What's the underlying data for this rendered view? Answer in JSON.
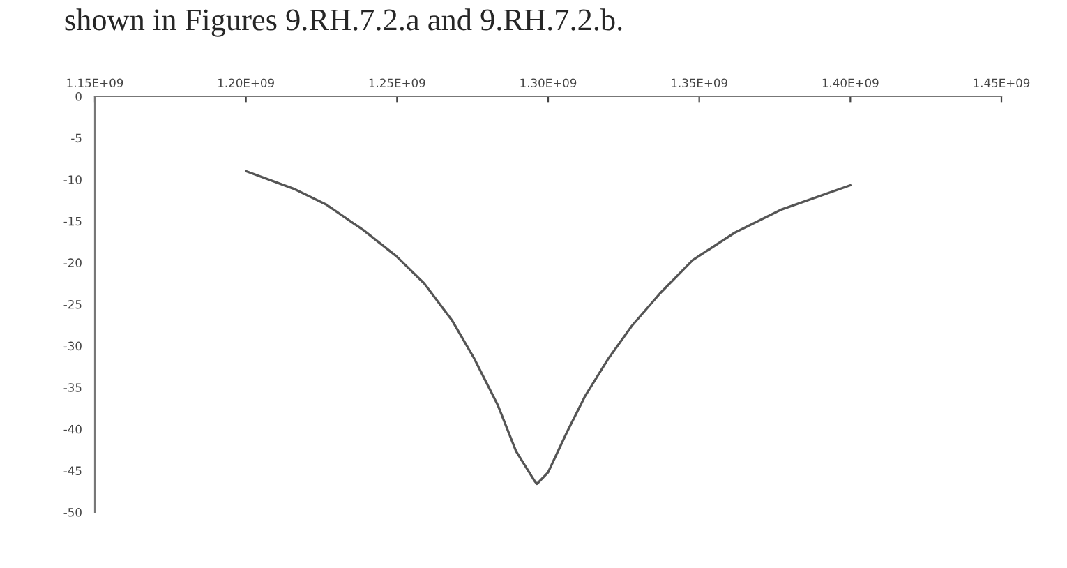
{
  "chart_data": {
    "type": "line",
    "annotations": [
      "shown in Figures 9.RH.7.2.a and 9.RH.7.2.b."
    ],
    "x": [
      1200000000.0,
      1215700000.0,
      1226500000.0,
      1238900000.0,
      1249700000.0,
      1259000000.0,
      1268300000.0,
      1275500000.0,
      1283300000.0,
      1289400000.0,
      1295600000.0,
      1296300000.0,
      1300000000.0,
      1306200000.0,
      1312300000.0,
      1320000000.0,
      1327700000.0,
      1337000000.0,
      1347800000.0,
      1361700000.0,
      1377300000.0,
      1400000000.0
    ],
    "series": [
      {
        "color": "#555555",
        "values": [
          -9.0,
          -11.1,
          -13.0,
          -16.1,
          -19.2,
          -22.5,
          -27.0,
          -31.5,
          -37.1,
          -42.7,
          -46.3,
          -46.6,
          -45.2,
          -40.4,
          -36.0,
          -31.5,
          -27.6,
          -23.7,
          -19.7,
          -16.4,
          -13.6,
          -10.7
        ]
      }
    ],
    "xlim": [
      1150000000.0,
      1450000000.0
    ],
    "xticks": [
      {
        "value": 1150000000.0,
        "label": "1.15E+09"
      },
      {
        "value": 1200000000.0,
        "label": "1.20E+09"
      },
      {
        "value": 1250000000.0,
        "label": "1.25E+09"
      },
      {
        "value": 1300000000.0,
        "label": "1.30E+09"
      },
      {
        "value": 1350000000.0,
        "label": "1.35E+09"
      },
      {
        "value": 1400000000.0,
        "label": "1.40E+09"
      },
      {
        "value": 1450000000.0,
        "label": "1.45E+09"
      }
    ],
    "ylim": [
      -50,
      0
    ],
    "yticks": [
      0,
      -5,
      -10,
      -15,
      -20,
      -25,
      -30,
      -35,
      -40,
      -45,
      -50
    ],
    "grid": false,
    "legend": false,
    "marker": "none",
    "line_style": "solid"
  }
}
